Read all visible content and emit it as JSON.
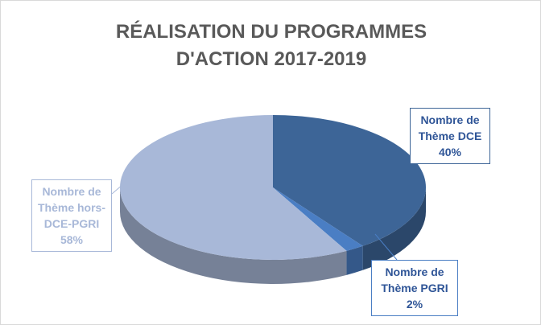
{
  "chart_data": {
    "type": "pie",
    "title": "RÉALISATION DU PROGRAMMES D'ACTION 2017-2019",
    "categories": [
      "Nombre de Thème DCE",
      "Nombre de Thème PGRI",
      "Nombre de Thème hors-DCE-PGRI"
    ],
    "values": [
      40,
      2,
      58
    ],
    "value_labels": [
      "40%",
      "2%",
      "58%"
    ],
    "colors": [
      "#3d6597",
      "#4a7ec4",
      "#a8b8d8"
    ]
  }
}
